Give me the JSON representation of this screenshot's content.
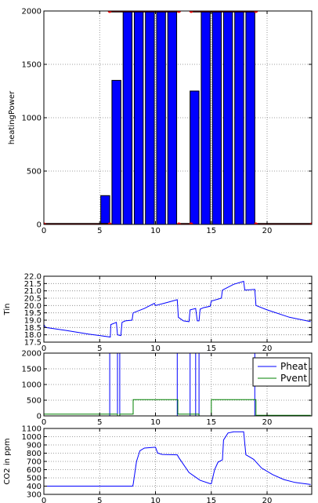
{
  "colors": {
    "bar": "#0000ff",
    "bar_edge": "#000000",
    "marker_line": "#000000",
    "marker_point": "#ff0000",
    "pheat": "#0000ff",
    "pvent": "#008000",
    "tin": "#0000ff",
    "co2": "#0000ff",
    "grid": "#808080"
  },
  "chart_data": [
    {
      "type": "bar",
      "xlabel": "",
      "ylabel": "heatingPower",
      "xlim": [
        0,
        24
      ],
      "ylim": [
        0,
        2000
      ],
      "xticks": [
        "0",
        "5",
        "10",
        "15",
        "20"
      ],
      "yticks": [
        "0",
        "500",
        "1000",
        "1500",
        "2000"
      ],
      "grid": true,
      "bar_width": 0.8,
      "x": [
        5.1,
        6.1,
        7.1,
        8.1,
        9.1,
        10.1,
        11.1,
        13.1,
        14.1,
        15.1,
        16.1,
        17.1,
        18.1
      ],
      "values": [
        270,
        1350,
        2000,
        2000,
        2000,
        2000,
        2000,
        1250,
        2000,
        2000,
        2000,
        2000,
        2000
      ],
      "marker_segments": [
        {
          "x": [
            0,
            5.9
          ],
          "y": 0
        },
        {
          "x": [
            5.9,
            12.1
          ],
          "y": 2000
        },
        {
          "x": [
            12.1,
            13.2
          ],
          "y": 0
        },
        {
          "x": [
            13.2,
            19.0
          ],
          "y": 2000
        },
        {
          "x": [
            19.0,
            24
          ],
          "y": 0
        }
      ]
    },
    {
      "type": "line",
      "xlabel": "",
      "ylabel": "Tin",
      "xlim": [
        0,
        24
      ],
      "ylim": [
        17.5,
        22.0
      ],
      "xticks": [
        "0",
        "5",
        "10",
        "15",
        "20"
      ],
      "yticks": [
        "17.5",
        "18.0",
        "18.5",
        "19.0",
        "19.5",
        "20.0",
        "20.5",
        "21.0",
        "21.5",
        "22.0"
      ],
      "grid": true,
      "series": [
        {
          "values": [
            [
              0,
              18.7
            ],
            [
              0.15,
              18.5
            ],
            [
              2,
              18.3
            ],
            [
              4,
              18.05
            ],
            [
              5,
              17.95
            ],
            [
              5.95,
              17.85
            ],
            [
              6.0,
              18.7
            ],
            [
              6.5,
              18.85
            ],
            [
              6.6,
              18.0
            ],
            [
              6.9,
              17.95
            ],
            [
              7.0,
              18.85
            ],
            [
              7.3,
              18.95
            ],
            [
              7.9,
              19.0
            ],
            [
              8.0,
              19.5
            ],
            [
              9.0,
              19.8
            ],
            [
              9.9,
              20.15
            ],
            [
              10.0,
              20.0
            ],
            [
              11.0,
              20.2
            ],
            [
              11.95,
              20.4
            ],
            [
              12.05,
              19.2
            ],
            [
              12.5,
              18.95
            ],
            [
              13.0,
              18.9
            ],
            [
              13.1,
              19.7
            ],
            [
              13.6,
              19.8
            ],
            [
              13.75,
              18.95
            ],
            [
              13.9,
              18.95
            ],
            [
              14.0,
              19.75
            ],
            [
              14.3,
              19.85
            ],
            [
              14.9,
              19.95
            ],
            [
              15.0,
              20.3
            ],
            [
              15.9,
              20.5
            ],
            [
              16.0,
              21.05
            ],
            [
              17.0,
              21.45
            ],
            [
              17.9,
              21.65
            ],
            [
              18.0,
              21.05
            ],
            [
              18.9,
              21.1
            ],
            [
              19.0,
              20.0
            ],
            [
              20.0,
              19.7
            ],
            [
              22.0,
              19.2
            ],
            [
              23.9,
              18.9
            ]
          ]
        }
      ]
    },
    {
      "type": "line",
      "xlabel": "",
      "ylabel": "",
      "xlim": [
        0,
        24
      ],
      "ylim": [
        0,
        2000
      ],
      "xticks": [
        "0",
        "5",
        "10",
        "15",
        "20"
      ],
      "yticks": [
        "0",
        "500",
        "1000",
        "1500",
        "2000"
      ],
      "grid": true,
      "legend": "top-right",
      "series": [
        {
          "name": "Pheat",
          "values": [
            [
              0,
              0
            ],
            [
              5.9,
              0
            ],
            [
              5.9,
              2000
            ],
            [
              6.6,
              2000
            ],
            [
              6.6,
              0
            ],
            [
              6.8,
              0
            ],
            [
              6.8,
              2000
            ],
            [
              11.95,
              2000
            ],
            [
              11.95,
              0
            ],
            [
              13.1,
              0
            ],
            [
              13.1,
              2000
            ],
            [
              13.6,
              2000
            ],
            [
              13.6,
              0
            ],
            [
              13.9,
              0
            ],
            [
              13.9,
              2000
            ],
            [
              18.9,
              2000
            ],
            [
              18.9,
              0
            ],
            [
              23.9,
              0
            ]
          ]
        },
        {
          "name": "Pvent",
          "values": [
            [
              0,
              55
            ],
            [
              6.6,
              55
            ],
            [
              6.6,
              0
            ],
            [
              6.8,
              0
            ],
            [
              6.8,
              55
            ],
            [
              8.0,
              55
            ],
            [
              8.0,
              520
            ],
            [
              12.0,
              520
            ],
            [
              12.0,
              55
            ],
            [
              13.9,
              55
            ],
            [
              13.9,
              0
            ],
            [
              15.0,
              0
            ],
            [
              15.0,
              520
            ],
            [
              19.0,
              520
            ],
            [
              19.0,
              20
            ],
            [
              23.9,
              20
            ]
          ]
        }
      ]
    },
    {
      "type": "line",
      "xlabel": "",
      "ylabel": "CO2 in ppm",
      "xlim": [
        0,
        24
      ],
      "ylim": [
        300,
        1100
      ],
      "xticks": [
        "0",
        "5",
        "10",
        "15",
        "20"
      ],
      "yticks": [
        "300",
        "400",
        "500",
        "600",
        "700",
        "800",
        "900",
        "1000",
        "1100"
      ],
      "grid": true,
      "series": [
        {
          "values": [
            [
              0,
              400
            ],
            [
              7.95,
              400
            ],
            [
              8.0,
              420
            ],
            [
              8.3,
              700
            ],
            [
              8.6,
              830
            ],
            [
              9.0,
              862
            ],
            [
              10.0,
              872
            ],
            [
              10.2,
              802
            ],
            [
              10.6,
              785
            ],
            [
              11.95,
              780
            ],
            [
              12.1,
              745
            ],
            [
              13.0,
              565
            ],
            [
              14.0,
              470
            ],
            [
              14.9,
              430
            ],
            [
              15.0,
              430
            ],
            [
              15.3,
              600
            ],
            [
              15.6,
              690
            ],
            [
              16.0,
              720
            ],
            [
              16.1,
              960
            ],
            [
              16.5,
              1045
            ],
            [
              17.0,
              1060
            ],
            [
              17.9,
              1060
            ],
            [
              18.1,
              780
            ],
            [
              18.5,
              750
            ],
            [
              18.8,
              725
            ],
            [
              19.5,
              620
            ],
            [
              20.5,
              540
            ],
            [
              21.5,
              480
            ],
            [
              22.5,
              445
            ],
            [
              23.9,
              420
            ]
          ]
        }
      ]
    }
  ]
}
